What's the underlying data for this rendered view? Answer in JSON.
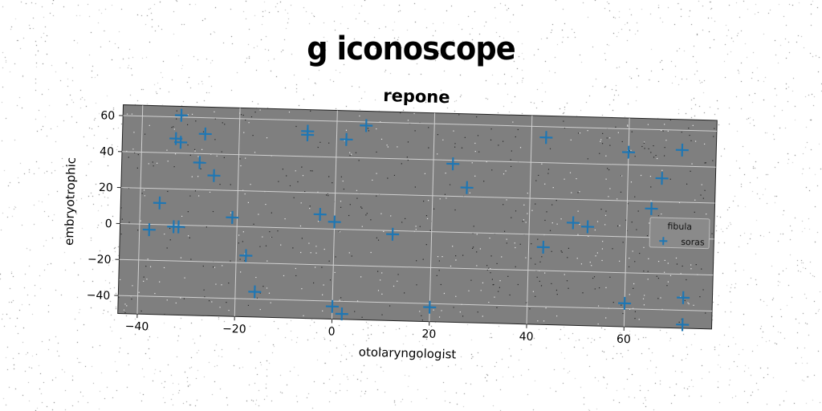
{
  "figure_title": "g iconoscope",
  "chart_data": {
    "type": "scatter",
    "title": "repone",
    "xlabel": "otolaryngologist",
    "ylabel": "embryotrophic",
    "xlim": [
      -44,
      78
    ],
    "ylim": [
      -50,
      66
    ],
    "xticks": [
      -40,
      -20,
      0,
      20,
      40,
      60
    ],
    "xtick_labels": [
      "−40",
      "−20",
      "0",
      "20",
      "40",
      "60"
    ],
    "yticks": [
      -40,
      -20,
      0,
      20,
      40,
      60
    ],
    "ytick_labels": [
      "−40",
      "−20",
      "0",
      "20",
      "40",
      "60"
    ],
    "grid": true,
    "legend": {
      "title": "fibula",
      "placement": "right",
      "entries": [
        "soras"
      ]
    },
    "series": [
      {
        "name": "soras",
        "marker": "+",
        "color": "#1f77b4",
        "x": [
          -32,
          -33,
          -32,
          -27,
          -28,
          -25,
          -36,
          -38,
          -33,
          -32,
          -21,
          -18,
          -16,
          -6,
          -6,
          2,
          6,
          -3,
          0,
          12,
          0,
          2,
          20,
          24,
          27,
          43,
          43,
          49,
          52,
          60,
          60,
          65,
          67,
          71,
          72,
          72
        ],
        "y": [
          61,
          48,
          46,
          51,
          35,
          28,
          12,
          -3,
          -1,
          -1,
          5,
          -16,
          -36,
          52,
          54,
          50,
          58,
          8,
          4,
          -2,
          -43,
          -47,
          -42,
          38,
          25,
          -7,
          54,
          7,
          5,
          47,
          -37,
          16,
          33,
          49,
          -33,
          -48
        ]
      }
    ]
  }
}
